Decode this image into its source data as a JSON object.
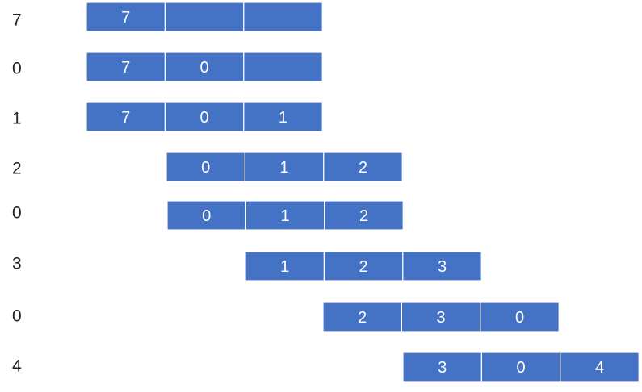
{
  "rows": [
    {
      "reference": "7",
      "frames": [
        "7",
        null,
        null
      ]
    },
    {
      "reference": "0",
      "frames": [
        "7",
        "0",
        null
      ]
    },
    {
      "reference": "1",
      "frames": [
        "7",
        "0",
        "1"
      ]
    },
    {
      "reference": "2",
      "frames": [
        "0",
        "1",
        "2"
      ]
    },
    {
      "reference": "0",
      "frames": [
        "0",
        "1",
        "2"
      ]
    },
    {
      "reference": "3",
      "frames": [
        "1",
        "2",
        "3"
      ]
    },
    {
      "reference": "0",
      "frames": [
        "2",
        "3",
        "0"
      ]
    },
    {
      "reference": "4",
      "frames": [
        "3",
        "0",
        "4"
      ]
    }
  ]
}
